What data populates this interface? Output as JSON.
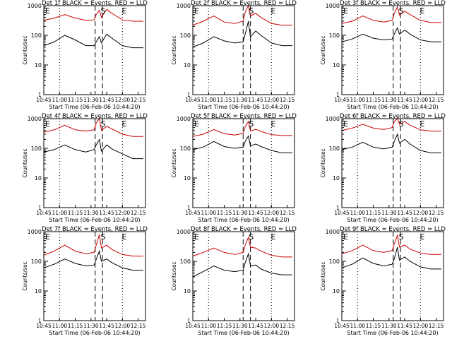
{
  "chart_data": [
    {
      "type": "line",
      "title": "Det 1f BLACK = Events, RED = LLD",
      "xlabel": "Start Time (06-Feb-06 10:44:20)",
      "ylabel": "Counts/sec",
      "x_ticks": [
        "10:45",
        "11:00",
        "11:15",
        "11:30",
        "11:45",
        "12:00",
        "12:15"
      ],
      "y_ticks": [
        "1",
        "10",
        "100",
        "1000"
      ],
      "yscale": "log",
      "ylim": [
        1,
        1000
      ],
      "markers": [
        {
          "label": "E",
          "x": "10:45"
        },
        {
          "label": "S",
          "x": "11:38"
        },
        {
          "label": "E",
          "x": "11:58"
        }
      ],
      "series": [
        {
          "name": "BLACK = Events",
          "color": "#000000",
          "x": [
            "10:45",
            "10:55",
            "11:05",
            "11:15",
            "11:25",
            "11:33",
            "11:35",
            "11:38",
            "11:40",
            "11:45",
            "11:50",
            "12:00",
            "12:10",
            "12:20"
          ],
          "values": [
            45,
            60,
            100,
            70,
            45,
            45,
            60,
            90,
            55,
            110,
            80,
            45,
            38,
            38
          ]
        },
        {
          "name": "RED = LLD",
          "color": "#cc0000",
          "x": [
            "10:45",
            "10:55",
            "11:05",
            "11:15",
            "11:25",
            "11:33",
            "11:35",
            "11:38",
            "11:40",
            "11:45",
            "11:50",
            "12:00",
            "12:10",
            "12:20"
          ],
          "values": [
            320,
            380,
            500,
            380,
            320,
            330,
            500,
            700,
            400,
            750,
            550,
            330,
            300,
            300
          ]
        }
      ]
    },
    {
      "type": "line",
      "title": "Det 2f BLACK = Events, RED = LLD",
      "xlabel": "Start Time (06-Feb-06 10:44:20)",
      "ylabel": "Counts/sec",
      "x_ticks": [
        "10:45",
        "11:00",
        "11:15",
        "11:30",
        "11:45",
        "12:00",
        "12:15"
      ],
      "y_ticks": [
        "1",
        "10",
        "100",
        "1000"
      ],
      "yscale": "log",
      "ylim": [
        1,
        1000
      ],
      "markers": [
        {
          "label": "E",
          "x": "10:45"
        },
        {
          "label": "S",
          "x": "11:37"
        },
        {
          "label": "E",
          "x": "11:58"
        }
      ],
      "series": [
        {
          "name": "BLACK = Events",
          "color": "#000000",
          "x": [
            "10:45",
            "10:55",
            "11:05",
            "11:15",
            "11:25",
            "11:33",
            "11:35",
            "11:38",
            "11:40",
            "11:45",
            "11:50",
            "12:00",
            "12:10",
            "12:20"
          ],
          "values": [
            40,
            55,
            90,
            65,
            55,
            60,
            110,
            300,
            90,
            140,
            100,
            55,
            45,
            45
          ]
        },
        {
          "name": "RED = LLD",
          "color": "#cc0000",
          "x": [
            "10:45",
            "10:55",
            "11:05",
            "11:15",
            "11:25",
            "11:33",
            "11:35",
            "11:38",
            "11:40",
            "11:45",
            "11:50",
            "12:00",
            "12:10",
            "12:20"
          ],
          "values": [
            220,
            300,
            450,
            280,
            250,
            300,
            600,
            1000,
            450,
            550,
            400,
            250,
            220,
            220
          ]
        }
      ]
    },
    {
      "type": "line",
      "title": "Det 3f BLACK = Events, RED = LLD",
      "xlabel": "Start Time (06-Feb-06 10:44:20)",
      "ylabel": "Counts/sec",
      "x_ticks": [
        "10:45",
        "11:00",
        "11:15",
        "11:30",
        "11:45",
        "12:00",
        "12:15"
      ],
      "y_ticks": [
        "1",
        "10",
        "100",
        "1000"
      ],
      "yscale": "log",
      "ylim": [
        1,
        1000
      ],
      "markers": [
        {
          "label": "E",
          "x": "10:45"
        },
        {
          "label": "S",
          "x": "11:38"
        },
        {
          "label": "E",
          "x": "11:58"
        }
      ],
      "series": [
        {
          "name": "BLACK = Events",
          "color": "#000000",
          "x": [
            "10:45",
            "10:55",
            "11:05",
            "11:15",
            "11:25",
            "11:33",
            "11:35",
            "11:38",
            "11:40",
            "11:45",
            "11:50",
            "12:00",
            "12:10",
            "12:20"
          ],
          "values": [
            60,
            75,
            110,
            80,
            70,
            75,
            110,
            180,
            110,
            150,
            110,
            70,
            60,
            60
          ]
        },
        {
          "name": "RED = LLD",
          "color": "#cc0000",
          "x": [
            "10:45",
            "10:55",
            "11:05",
            "11:15",
            "11:25",
            "11:33",
            "11:35",
            "11:38",
            "11:40",
            "11:45",
            "11:50",
            "12:00",
            "12:10",
            "12:20"
          ],
          "values": [
            250,
            300,
            450,
            320,
            280,
            320,
            550,
            900,
            480,
            650,
            500,
            320,
            270,
            270
          ]
        }
      ]
    },
    {
      "type": "line",
      "title": "Det 4f BLACK = Events, RED = LLD",
      "xlabel": "Start Time (06-Feb-06 10:44:20)",
      "ylabel": "Counts/sec",
      "x_ticks": [
        "10:45",
        "11:00",
        "11:15",
        "11:30",
        "11:45",
        "12:00",
        "12:15"
      ],
      "y_ticks": [
        "1",
        "10",
        "100",
        "1000"
      ],
      "yscale": "log",
      "ylim": [
        1,
        1000
      ],
      "markers": [
        {
          "label": "E",
          "x": "10:45"
        },
        {
          "label": "S",
          "x": "11:38"
        },
        {
          "label": "E",
          "x": "11:58"
        }
      ],
      "series": [
        {
          "name": "BLACK = Events",
          "color": "#000000",
          "x": [
            "10:45",
            "10:55",
            "11:05",
            "11:15",
            "11:25",
            "11:33",
            "11:35",
            "11:38",
            "11:40",
            "11:45",
            "11:50",
            "12:00",
            "12:10",
            "12:20"
          ],
          "values": [
            75,
            90,
            130,
            90,
            75,
            90,
            130,
            200,
            80,
            130,
            95,
            65,
            45,
            45
          ]
        },
        {
          "name": "RED = LLD",
          "color": "#cc0000",
          "x": [
            "10:45",
            "10:55",
            "11:05",
            "11:15",
            "11:25",
            "11:33",
            "11:35",
            "11:38",
            "11:40",
            "11:45",
            "11:50",
            "12:00",
            "12:10",
            "12:20"
          ],
          "values": [
            350,
            420,
            600,
            420,
            380,
            420,
            700,
            1000,
            400,
            550,
            450,
            300,
            250,
            250
          ]
        }
      ]
    },
    {
      "type": "line",
      "title": "Det 5f BLACK = Events, RED = LLD",
      "xlabel": "Start Time (06-Feb-06 10:44:20)",
      "ylabel": "Counts/sec",
      "x_ticks": [
        "10:45",
        "11:00",
        "11:15",
        "11:30",
        "11:45",
        "12:00",
        "12:15"
      ],
      "y_ticks": [
        "1",
        "10",
        "100",
        "1000"
      ],
      "yscale": "log",
      "ylim": [
        1,
        1000
      ],
      "markers": [
        {
          "label": "E",
          "x": "10:45"
        },
        {
          "label": "S",
          "x": "11:37"
        },
        {
          "label": "E",
          "x": "11:58"
        }
      ],
      "series": [
        {
          "name": "BLACK = Events",
          "color": "#000000",
          "x": [
            "10:45",
            "10:55",
            "11:05",
            "11:15",
            "11:25",
            "11:33",
            "11:35",
            "11:38",
            "11:40",
            "11:45",
            "11:50",
            "12:00",
            "12:10",
            "12:20"
          ],
          "values": [
            90,
            110,
            170,
            115,
            100,
            110,
            170,
            260,
            120,
            140,
            115,
            85,
            70,
            70
          ]
        },
        {
          "name": "RED = LLD",
          "color": "#cc0000",
          "x": [
            "10:45",
            "10:55",
            "11:05",
            "11:15",
            "11:25",
            "11:33",
            "11:35",
            "11:38",
            "11:40",
            "11:45",
            "11:50",
            "12:00",
            "12:10",
            "12:20"
          ],
          "values": [
            250,
            300,
            430,
            310,
            280,
            320,
            530,
            800,
            380,
            440,
            370,
            290,
            270,
            270
          ]
        }
      ]
    },
    {
      "type": "line",
      "title": "Det 6f BLACK = Events, RED = LLD",
      "xlabel": "Start Time (06-Feb-06 10:44:20)",
      "ylabel": "Counts/sec",
      "x_ticks": [
        "10:45",
        "11:00",
        "11:15",
        "11:30",
        "11:45",
        "12:00",
        "12:15"
      ],
      "y_ticks": [
        "1",
        "10",
        "100",
        "1000"
      ],
      "yscale": "log",
      "ylim": [
        1,
        1000
      ],
      "markers": [
        {
          "label": "E",
          "x": "10:45"
        },
        {
          "label": "S",
          "x": "11:38"
        },
        {
          "label": "E",
          "x": "11:58"
        }
      ],
      "series": [
        {
          "name": "BLACK = Events",
          "color": "#000000",
          "x": [
            "10:45",
            "10:55",
            "11:05",
            "11:15",
            "11:25",
            "11:33",
            "11:35",
            "11:38",
            "11:40",
            "11:45",
            "11:50",
            "12:00",
            "12:10",
            "12:20"
          ],
          "values": [
            90,
            110,
            160,
            110,
            95,
            110,
            170,
            300,
            150,
            200,
            140,
            85,
            70,
            70
          ]
        },
        {
          "name": "RED = LLD",
          "color": "#cc0000",
          "x": [
            "10:45",
            "10:55",
            "11:05",
            "11:15",
            "11:25",
            "11:33",
            "11:35",
            "11:38",
            "11:40",
            "11:45",
            "11:50",
            "12:00",
            "12:10",
            "12:20"
          ],
          "values": [
            400,
            480,
            650,
            480,
            430,
            500,
            800,
            1000,
            650,
            800,
            600,
            420,
            380,
            380
          ]
        }
      ]
    },
    {
      "type": "line",
      "title": "Det 7f BLACK = Events, RED = LLD",
      "xlabel": "Start Time (06-Feb-06 10:44:20)",
      "ylabel": "Counts/sec",
      "x_ticks": [
        "10:45",
        "11:00",
        "11:15",
        "11:30",
        "11:45",
        "12:00",
        "12:15"
      ],
      "y_ticks": [
        "1",
        "10",
        "100",
        "1000"
      ],
      "yscale": "log",
      "ylim": [
        1,
        1000
      ],
      "markers": [
        {
          "label": "E",
          "x": "10:45"
        },
        {
          "label": "S",
          "x": "11:38"
        },
        {
          "label": "E",
          "x": "11:58"
        }
      ],
      "series": [
        {
          "name": "BLACK = Events",
          "color": "#000000",
          "x": [
            "10:45",
            "10:55",
            "11:05",
            "11:15",
            "11:25",
            "11:33",
            "11:35",
            "11:38",
            "11:40",
            "11:45",
            "11:50",
            "12:00",
            "12:10",
            "12:20"
          ],
          "values": [
            60,
            80,
            120,
            85,
            70,
            75,
            115,
            220,
            100,
            120,
            90,
            60,
            50,
            50
          ]
        },
        {
          "name": "RED = LLD",
          "color": "#cc0000",
          "x": [
            "10:45",
            "10:55",
            "11:05",
            "11:15",
            "11:25",
            "11:33",
            "11:35",
            "11:38",
            "11:40",
            "11:45",
            "11:50",
            "12:00",
            "12:10",
            "12:20"
          ],
          "values": [
            160,
            220,
            350,
            220,
            180,
            200,
            350,
            800,
            280,
            350,
            250,
            170,
            150,
            150
          ]
        }
      ]
    },
    {
      "type": "line",
      "title": "Det 8f BLACK = Events, RED = LLD",
      "xlabel": "Start Time (06-Feb-06 10:44:20)",
      "ylabel": "Counts/sec",
      "x_ticks": [
        "10:45",
        "11:00",
        "11:15",
        "11:30",
        "11:45",
        "12:00",
        "12:15"
      ],
      "y_ticks": [
        "1",
        "10",
        "100",
        "1000"
      ],
      "yscale": "log",
      "ylim": [
        1,
        1000
      ],
      "markers": [
        {
          "label": "E",
          "x": "10:45"
        },
        {
          "label": "S",
          "x": "11:37"
        },
        {
          "label": "E",
          "x": "11:58"
        }
      ],
      "series": [
        {
          "name": "BLACK = Events",
          "color": "#000000",
          "x": [
            "10:45",
            "10:55",
            "11:05",
            "11:15",
            "11:25",
            "11:33",
            "11:35",
            "11:38",
            "11:40",
            "11:45",
            "11:50",
            "12:00",
            "12:10",
            "12:20"
          ],
          "values": [
            30,
            45,
            70,
            50,
            45,
            50,
            90,
            180,
            70,
            75,
            55,
            40,
            35,
            35
          ]
        },
        {
          "name": "RED = LLD",
          "color": "#cc0000",
          "x": [
            "10:45",
            "10:55",
            "11:05",
            "11:15",
            "11:25",
            "11:33",
            "11:35",
            "11:38",
            "11:40",
            "11:45",
            "11:50",
            "12:00",
            "12:10",
            "12:20"
          ],
          "values": [
            150,
            200,
            280,
            200,
            170,
            200,
            350,
            650,
            300,
            280,
            220,
            160,
            140,
            140
          ]
        }
      ]
    },
    {
      "type": "line",
      "title": "Det 9f BLACK = Events, RED = LLD",
      "xlabel": "Start Time (06-Feb-06 10:44:20)",
      "ylabel": "Counts/sec",
      "x_ticks": [
        "10:45",
        "11:00",
        "11:15",
        "11:30",
        "11:45",
        "12:00",
        "12:15"
      ],
      "y_ticks": [
        "1",
        "10",
        "100",
        "1000"
      ],
      "yscale": "log",
      "ylim": [
        1,
        1000
      ],
      "markers": [
        {
          "label": "E",
          "x": "10:45"
        },
        {
          "label": "S",
          "x": "11:38"
        },
        {
          "label": "E",
          "x": "11:58"
        }
      ],
      "series": [
        {
          "name": "BLACK = Events",
          "color": "#000000",
          "x": [
            "10:45",
            "10:55",
            "11:05",
            "11:15",
            "11:25",
            "11:33",
            "11:35",
            "11:38",
            "11:40",
            "11:45",
            "11:50",
            "12:00",
            "12:10",
            "12:20"
          ],
          "values": [
            60,
            80,
            130,
            85,
            70,
            80,
            120,
            300,
            110,
            140,
            100,
            65,
            55,
            55
          ]
        },
        {
          "name": "RED = LLD",
          "color": "#cc0000",
          "x": [
            "10:45",
            "10:55",
            "11:05",
            "11:15",
            "11:25",
            "11:33",
            "11:35",
            "11:38",
            "11:40",
            "11:45",
            "11:50",
            "12:00",
            "12:10",
            "12:20"
          ],
          "values": [
            180,
            230,
            350,
            230,
            200,
            230,
            380,
            750,
            300,
            350,
            260,
            190,
            170,
            170
          ]
        }
      ]
    }
  ]
}
